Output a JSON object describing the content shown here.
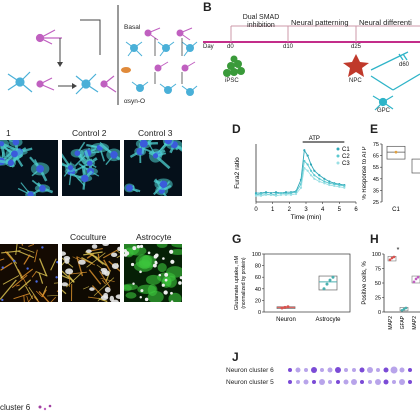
{
  "panels": {
    "b": "B",
    "d": "D",
    "e": "E",
    "g": "G",
    "h": "H",
    "j": "J"
  },
  "panel_a": {
    "basal": "Basal",
    "asyn": "αsyn-O"
  },
  "panel_b": {
    "stage1": "Dual SMAD\ninhibition",
    "stage2": "Neural patterning",
    "stage3": "Neural differenti",
    "day": "Day",
    "d0": "d0",
    "d10": "d10",
    "d25": "d25",
    "d60": "d60",
    "ipsc": "iPSC",
    "npc": "NPC",
    "gpc": "GPC"
  },
  "panel_c": {
    "titles": [
      "1",
      "Control 2",
      "Control 3"
    ],
    "colors": {
      "nuclei": "#3b5bdb",
      "cyto": "#4fd1d1"
    }
  },
  "panel_f": {
    "titles": [
      "Coculture",
      "Astrocyte"
    ],
    "colors": {
      "neuron": "#e0902a",
      "astro": "#3cc43c"
    }
  },
  "bottom_left_label": "cluster 6",
  "chart_d": {
    "type": "line",
    "ylabel": "Fura2 ratio",
    "xlabel": "Time (min)",
    "annotation": "ATP",
    "x_ticks": [
      "0",
      "1",
      "2",
      "3",
      "4",
      "5",
      "6"
    ],
    "legend": [
      "C1",
      "C2",
      "C3"
    ],
    "color": "#5bc8d0"
  },
  "chart_e": {
    "ylabel": "% Response to ATP",
    "y_ticks": [
      "25",
      "35",
      "45",
      "55",
      "65",
      "75"
    ],
    "x_ticks": [
      "C1"
    ]
  },
  "chart_g": {
    "ylabel": "Glutamate uptake, nM",
    "ylabel2": "(normalized by protein)",
    "y_ticks": [
      "0",
      "20",
      "40",
      "60",
      "80",
      "100"
    ],
    "x_ticks": [
      "Neuron",
      "Astrocyte"
    ]
  },
  "chart_h": {
    "ylabel": "Positive cells, %",
    "y_ticks": [
      "0",
      "25",
      "50",
      "75",
      "100"
    ],
    "x_ticks": [
      "MAP2",
      "GFAP",
      "MAP2"
    ],
    "sig": "*"
  },
  "chart_j": {
    "rows": [
      "Neuron cluster 6",
      "Neuron cluster 5"
    ]
  },
  "chart_data": [
    {
      "type": "line",
      "xlabel": "Time (min)",
      "ylabel": "Fura2 ratio",
      "xlim": [
        0,
        6
      ],
      "series": [
        {
          "name": "C1",
          "x": [
            0,
            0.3,
            0.6,
            0.9,
            1.2,
            1.5,
            1.8,
            2.1,
            2.4,
            2.7,
            2.9,
            3.1,
            3.3,
            3.5,
            3.8,
            4.1,
            4.4,
            4.7,
            5.0,
            5.3
          ],
          "values": [
            0.3,
            0.3,
            0.31,
            0.3,
            0.31,
            0.3,
            0.31,
            0.31,
            0.32,
            0.45,
            0.78,
            0.72,
            0.62,
            0.55,
            0.5,
            0.46,
            0.43,
            0.41,
            0.4,
            0.39
          ]
        },
        {
          "name": "C2",
          "x": [
            0,
            0.3,
            0.6,
            0.9,
            1.2,
            1.5,
            1.8,
            2.1,
            2.4,
            2.7,
            2.9,
            3.1,
            3.3,
            3.5,
            3.8,
            4.1,
            4.4,
            4.7,
            5.0,
            5.3
          ],
          "values": [
            0.28,
            0.29,
            0.29,
            0.28,
            0.29,
            0.3,
            0.29,
            0.3,
            0.31,
            0.4,
            0.66,
            0.62,
            0.55,
            0.5,
            0.46,
            0.43,
            0.41,
            0.4,
            0.39,
            0.38
          ]
        },
        {
          "name": "C3",
          "x": [
            0,
            0.3,
            0.6,
            0.9,
            1.2,
            1.5,
            1.8,
            2.1,
            2.4,
            2.7,
            2.9,
            3.1,
            3.3,
            3.5,
            3.8,
            4.1,
            4.4,
            4.7,
            5.0,
            5.3
          ],
          "values": [
            0.27,
            0.27,
            0.28,
            0.28,
            0.27,
            0.28,
            0.28,
            0.28,
            0.29,
            0.36,
            0.58,
            0.55,
            0.5,
            0.46,
            0.43,
            0.41,
            0.39,
            0.38,
            0.37,
            0.36
          ]
        }
      ]
    },
    {
      "type": "bar",
      "ylabel": "% Response to ATP",
      "ylim": [
        25,
        75
      ],
      "categories": [
        "C1"
      ],
      "box": {
        "low": 62,
        "high": 73,
        "median": 68
      },
      "points": [
        68
      ]
    },
    {
      "type": "bar",
      "ylabel": "Glutamate uptake, nM",
      "ylim": [
        0,
        100
      ],
      "categories": [
        "Neuron",
        "Astrocyte"
      ],
      "boxes": [
        {
          "category": "Neuron",
          "low": 6,
          "high": 9,
          "median": 8,
          "points": [
            7,
            8,
            9
          ]
        },
        {
          "category": "Astrocyte",
          "low": 38,
          "high": 62,
          "median": 52,
          "points": [
            40,
            48,
            55,
            60
          ]
        }
      ]
    },
    {
      "type": "bar",
      "ylabel": "Positive cells, %",
      "ylim": [
        0,
        100
      ],
      "categories": [
        "MAP2",
        "GFAP",
        "MAP2"
      ],
      "boxes": [
        {
          "category": "MAP2",
          "low": 88,
          "high": 96,
          "median": 92,
          "points": [
            90,
            93,
            95
          ]
        },
        {
          "category": "GFAP",
          "low": 2,
          "high": 8,
          "median": 5,
          "points": [
            3,
            5,
            7
          ]
        },
        {
          "category": "MAP2",
          "low": 50,
          "high": 62,
          "median": 57,
          "points": [
            52,
            57,
            60
          ]
        }
      ]
    }
  ]
}
